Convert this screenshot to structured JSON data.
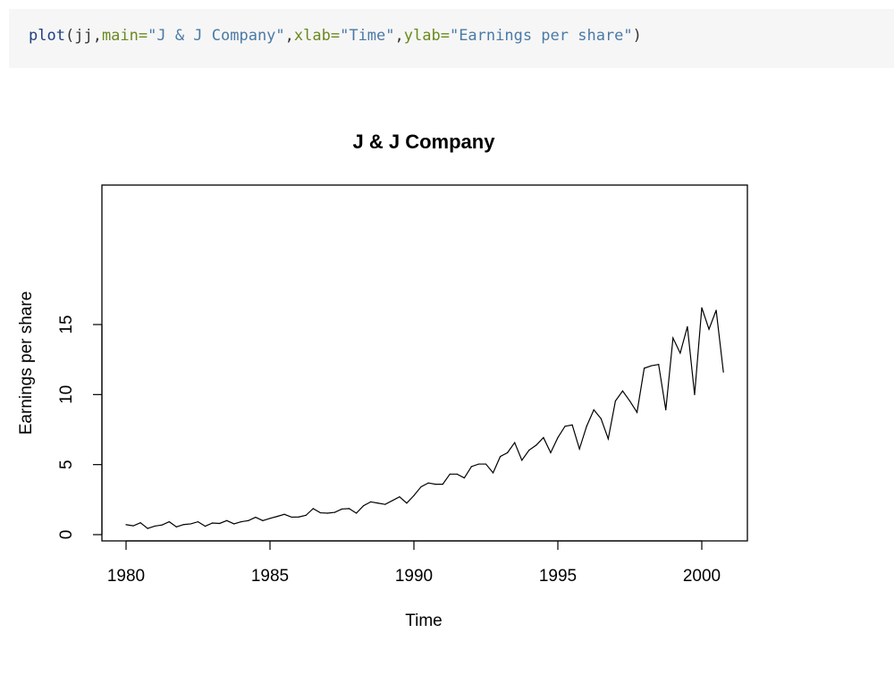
{
  "code": {
    "fn": "plot",
    "open": "(",
    "arg0": "jj",
    "comma1": ",",
    "main_key": "main=",
    "main_val": "\"J & J Company\"",
    "comma2": ",",
    "xlab_key": "xlab=",
    "xlab_val": "\"Time\"",
    "comma3": ",",
    "ylab_key": "ylab=",
    "ylab_val": "\"Earnings per share\"",
    "close": ")"
  },
  "colors": {
    "code_bg": "#f6f6f6",
    "line": "#000000"
  },
  "chart_data": {
    "type": "line",
    "title": "J & J Company",
    "xlabel": "Time",
    "ylabel": "Earnings per share",
    "xlim": [
      1980,
      2001
    ],
    "ylim": [
      0,
      16.2
    ],
    "xticks": [
      1980,
      1985,
      1990,
      1995,
      2000
    ],
    "yticks": [
      0,
      5,
      10,
      15
    ],
    "grid": false,
    "legend": "none",
    "frequency": "quarterly",
    "start": 1980,
    "series": [
      {
        "values": [
          0.71,
          0.63,
          0.85,
          0.44,
          0.61,
          0.69,
          0.92,
          0.55,
          0.72,
          0.77,
          0.92,
          0.6,
          0.83,
          0.8,
          1.0,
          0.77,
          0.92,
          1.0,
          1.24,
          1.0,
          1.16,
          1.3,
          1.45,
          1.25,
          1.26,
          1.38,
          1.86,
          1.56,
          1.53,
          1.59,
          1.83,
          1.86,
          1.53,
          2.07,
          2.34,
          2.25,
          2.16,
          2.43,
          2.7,
          2.25,
          2.79,
          3.42,
          3.69,
          3.6,
          3.6,
          4.32,
          4.32,
          4.05,
          4.86,
          5.04,
          5.04,
          4.41,
          5.58,
          5.85,
          6.57,
          5.31,
          6.03,
          6.39,
          6.93,
          5.85,
          6.93,
          7.74,
          7.83,
          6.12,
          7.74,
          8.91,
          8.28,
          6.84,
          9.54,
          10.26,
          9.54,
          8.73,
          11.88,
          12.06,
          12.15,
          8.91,
          14.04,
          12.96,
          14.85,
          9.99,
          16.2,
          14.67,
          16.02,
          11.61
        ]
      }
    ]
  }
}
